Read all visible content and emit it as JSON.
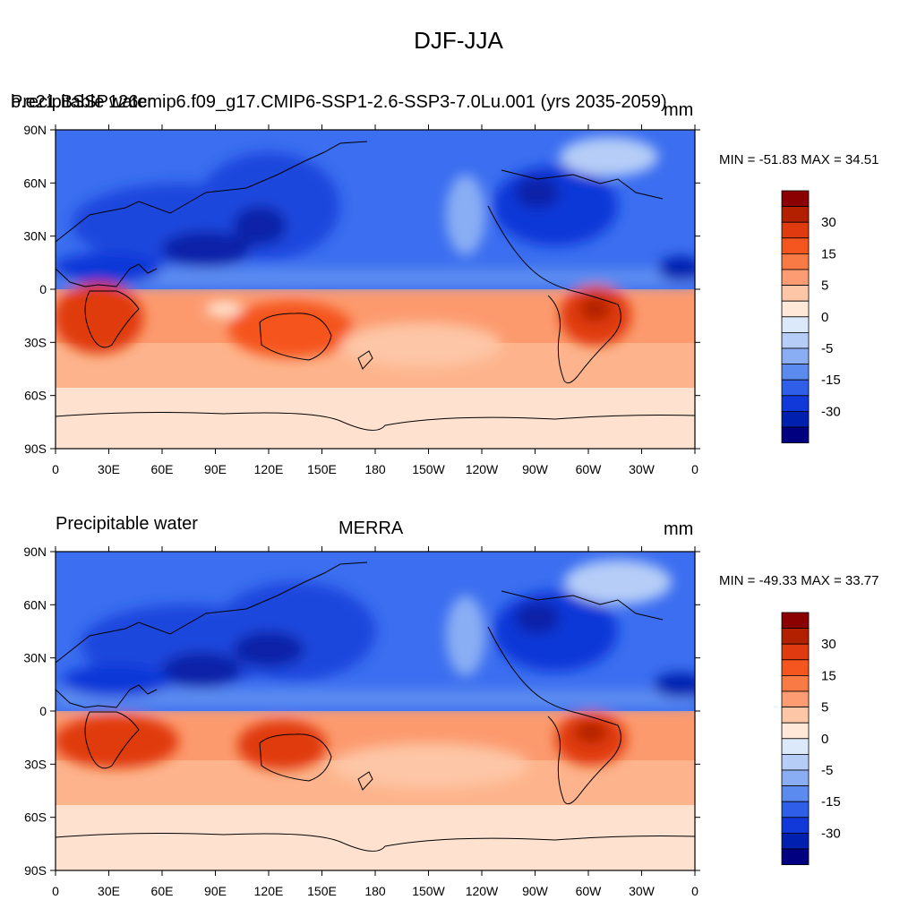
{
  "figure_title": "DJF-JJA",
  "panels": [
    {
      "left_title": "Precipitable water",
      "center_title": "b.e21.BSSP126cmip6.f09_g17.CMIP6-SSP1-2.6-SSP3-7.0Lu.001 (yrs 2035-2059)",
      "units": "mm",
      "min_max": "MIN = -51.83 MAX =  34.51",
      "min": -51.83,
      "max": 34.51
    },
    {
      "left_title": "Precipitable water",
      "center_title": "MERRA",
      "units": "mm",
      "min_max": "MIN = -49.33 MAX =  33.77",
      "min": -49.33,
      "max": 33.77
    }
  ],
  "lat_ticks": [
    "90N",
    "60N",
    "30N",
    "0",
    "30S",
    "60S",
    "90S"
  ],
  "lon_ticks": [
    "0",
    "30E",
    "60E",
    "90E",
    "120E",
    "150E",
    "180",
    "150W",
    "120W",
    "90W",
    "60W",
    "30W",
    "0"
  ],
  "colorbar": {
    "colors": [
      "#8b0000",
      "#b22000",
      "#e03a10",
      "#f5551f",
      "#fa7a45",
      "#fd9c72",
      "#fdc6a6",
      "#ffe8d8",
      "#dce9fb",
      "#b6cdf7",
      "#8aaef4",
      "#5b8bef",
      "#2f5ee8",
      "#1138d8",
      "#0020b0",
      "#000080"
    ],
    "labels": [
      "30",
      "15",
      "5",
      "0",
      "-5",
      "-15",
      "-30"
    ]
  },
  "chart_data": {
    "type": "heatmap",
    "title": "DJF-JJA",
    "variable": "Precipitable water",
    "units": "mm",
    "datasets": [
      {
        "name": "b.e21.BSSP126cmip6.f09_g17.CMIP6-SSP1-2.6-SSP3-7.0Lu.001 (yrs 2035-2059)",
        "min": -51.83,
        "max": 34.51
      },
      {
        "name": "MERRA",
        "min": -49.33,
        "max": 33.77
      }
    ],
    "contour_levels": [
      -40,
      -35,
      -30,
      -25,
      -20,
      -15,
      -10,
      -5,
      0,
      5,
      10,
      15,
      20,
      25,
      30,
      35
    ],
    "xlim": [
      0,
      360
    ],
    "ylim": [
      -90,
      90
    ]
  }
}
